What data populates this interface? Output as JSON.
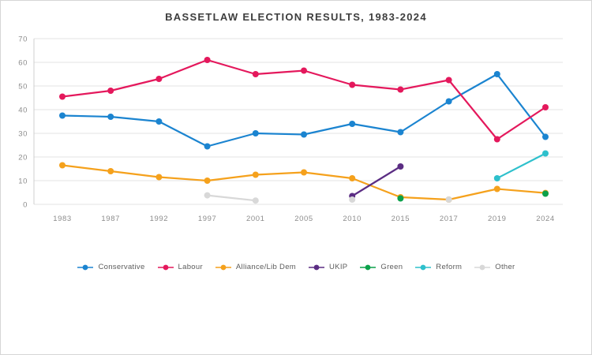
{
  "title": "BASSETLAW ELECTION RESULTS, 1983-2024",
  "chart_data": {
    "type": "line",
    "title": "BASSETLAW ELECTION RESULTS, 1983-2024",
    "categories": [
      "1983",
      "1987",
      "1992",
      "1997",
      "2001",
      "2005",
      "2010",
      "2015",
      "2017",
      "2019",
      "2024"
    ],
    "xlabel": "",
    "ylabel": "",
    "ylim": [
      0,
      70
    ],
    "yticks": [
      0,
      10,
      20,
      30,
      40,
      50,
      60,
      70
    ],
    "grid": true,
    "legend_position": "bottom",
    "series": [
      {
        "name": "Conservative",
        "color": "#1b84d0",
        "values": [
          37.5,
          37,
          35,
          24.5,
          30,
          29.5,
          34,
          30.5,
          43.5,
          55,
          28.5
        ]
      },
      {
        "name": "Labour",
        "color": "#e4185c",
        "values": [
          45.5,
          48,
          53,
          61,
          55,
          56.5,
          50.5,
          48.5,
          52.5,
          27.5,
          41
        ]
      },
      {
        "name": "Alliance/Lib Dem",
        "color": "#f5a11c",
        "values": [
          16.5,
          14,
          11.5,
          10,
          12.5,
          13.5,
          11,
          3,
          2,
          6.5,
          4.8
        ]
      },
      {
        "name": "UKIP",
        "color": "#5b2d83",
        "values": [
          null,
          null,
          null,
          null,
          null,
          null,
          3.5,
          16,
          null,
          null,
          null
        ]
      },
      {
        "name": "Green",
        "color": "#0ba14a",
        "values": [
          null,
          null,
          null,
          null,
          null,
          null,
          null,
          2.5,
          null,
          null,
          4.5
        ]
      },
      {
        "name": "Reform",
        "color": "#2ec0cc",
        "values": [
          null,
          null,
          null,
          null,
          null,
          null,
          null,
          null,
          null,
          11,
          21.5
        ]
      },
      {
        "name": "Other",
        "color": "#d8d8d8",
        "values": [
          null,
          null,
          null,
          3.8,
          1.6,
          null,
          2,
          null,
          2,
          null,
          null
        ]
      }
    ]
  }
}
